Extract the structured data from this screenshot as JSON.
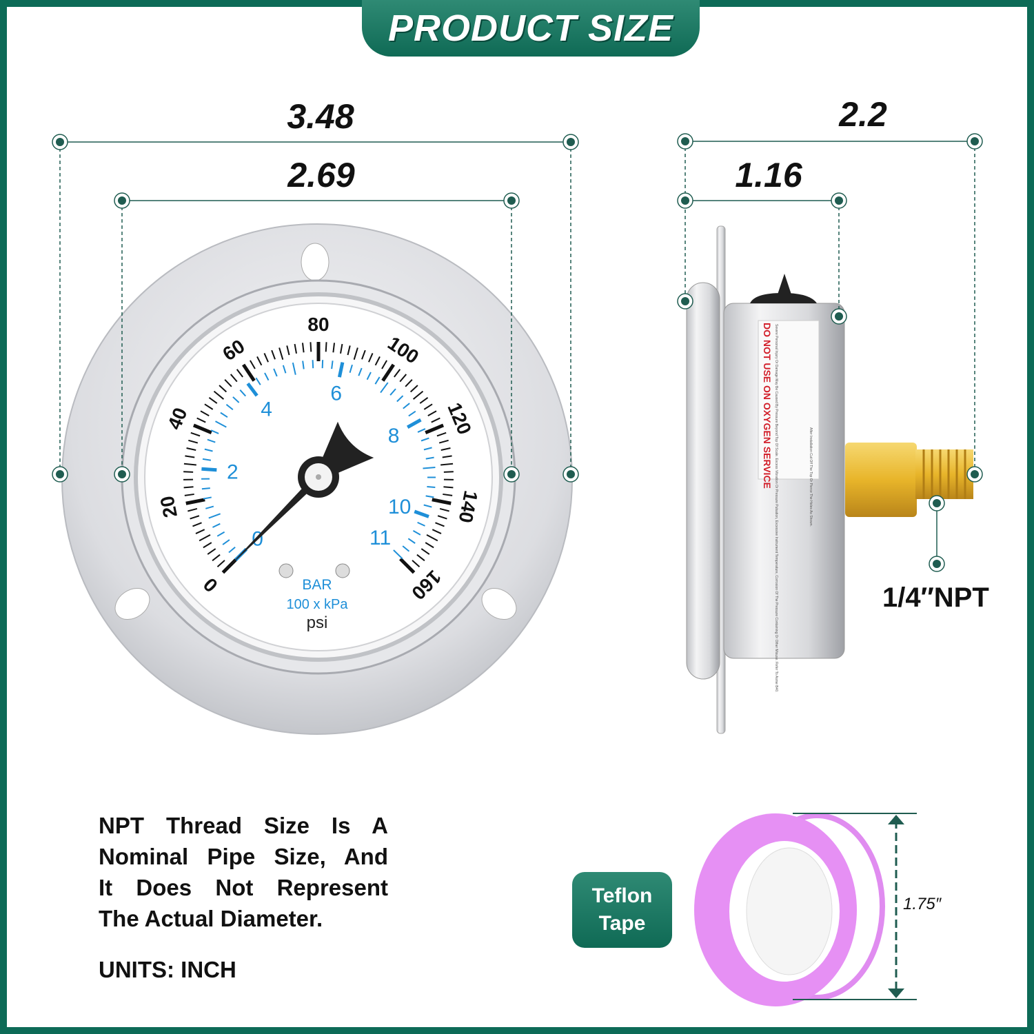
{
  "header": {
    "title": "PRODUCT SIZE"
  },
  "dimensions": {
    "front_overall": "3.48",
    "front_dial": "2.69",
    "side_overall": "2.2",
    "side_body": "1.16",
    "thread": "1/4″NPT"
  },
  "gauge": {
    "psi_labels": [
      "0",
      "20",
      "40",
      "60",
      "80",
      "100",
      "120",
      "140",
      "160"
    ],
    "bar_labels": [
      "0",
      "2",
      "4",
      "6",
      "8",
      "10",
      "11"
    ],
    "unit_bar": "BAR",
    "unit_kpa": "100 x kPa",
    "unit_psi": "psi",
    "psi_max": 160,
    "bar_max": 11,
    "needle_psi": 0
  },
  "side_label": {
    "warning": "DO NOT USE ON OXYGEN SERVICE",
    "fine_print": "Severe Personal Injury Or Damage May Be Caused By Pressure Beyond Top Of Scale. Excess Vibration Or Pressure Pulsation, Excessive Instrument Temperature, Corrosion Of The Pressure Containing Or Other Misuse. Refer To Asme B40.",
    "install_note": "After Installation Cut Off The Top Or Pierce The Holes As Shown."
  },
  "note": {
    "lines": [
      "NPT Thread Size Is A",
      "Nominal Pipe Size, And",
      "It Does Not Represent",
      "The Actual Diameter."
    ],
    "units": "UNITS: INCH"
  },
  "teflon": {
    "line1": "Teflon",
    "line2": "Tape",
    "size": "1.75″"
  },
  "colors": {
    "brand_green": "#0d6b57",
    "dim_line": "#1f5c50",
    "bar_scale": "#1e8fd8",
    "tape_pink": "#e08cf0",
    "brass": "#e8b52a"
  }
}
